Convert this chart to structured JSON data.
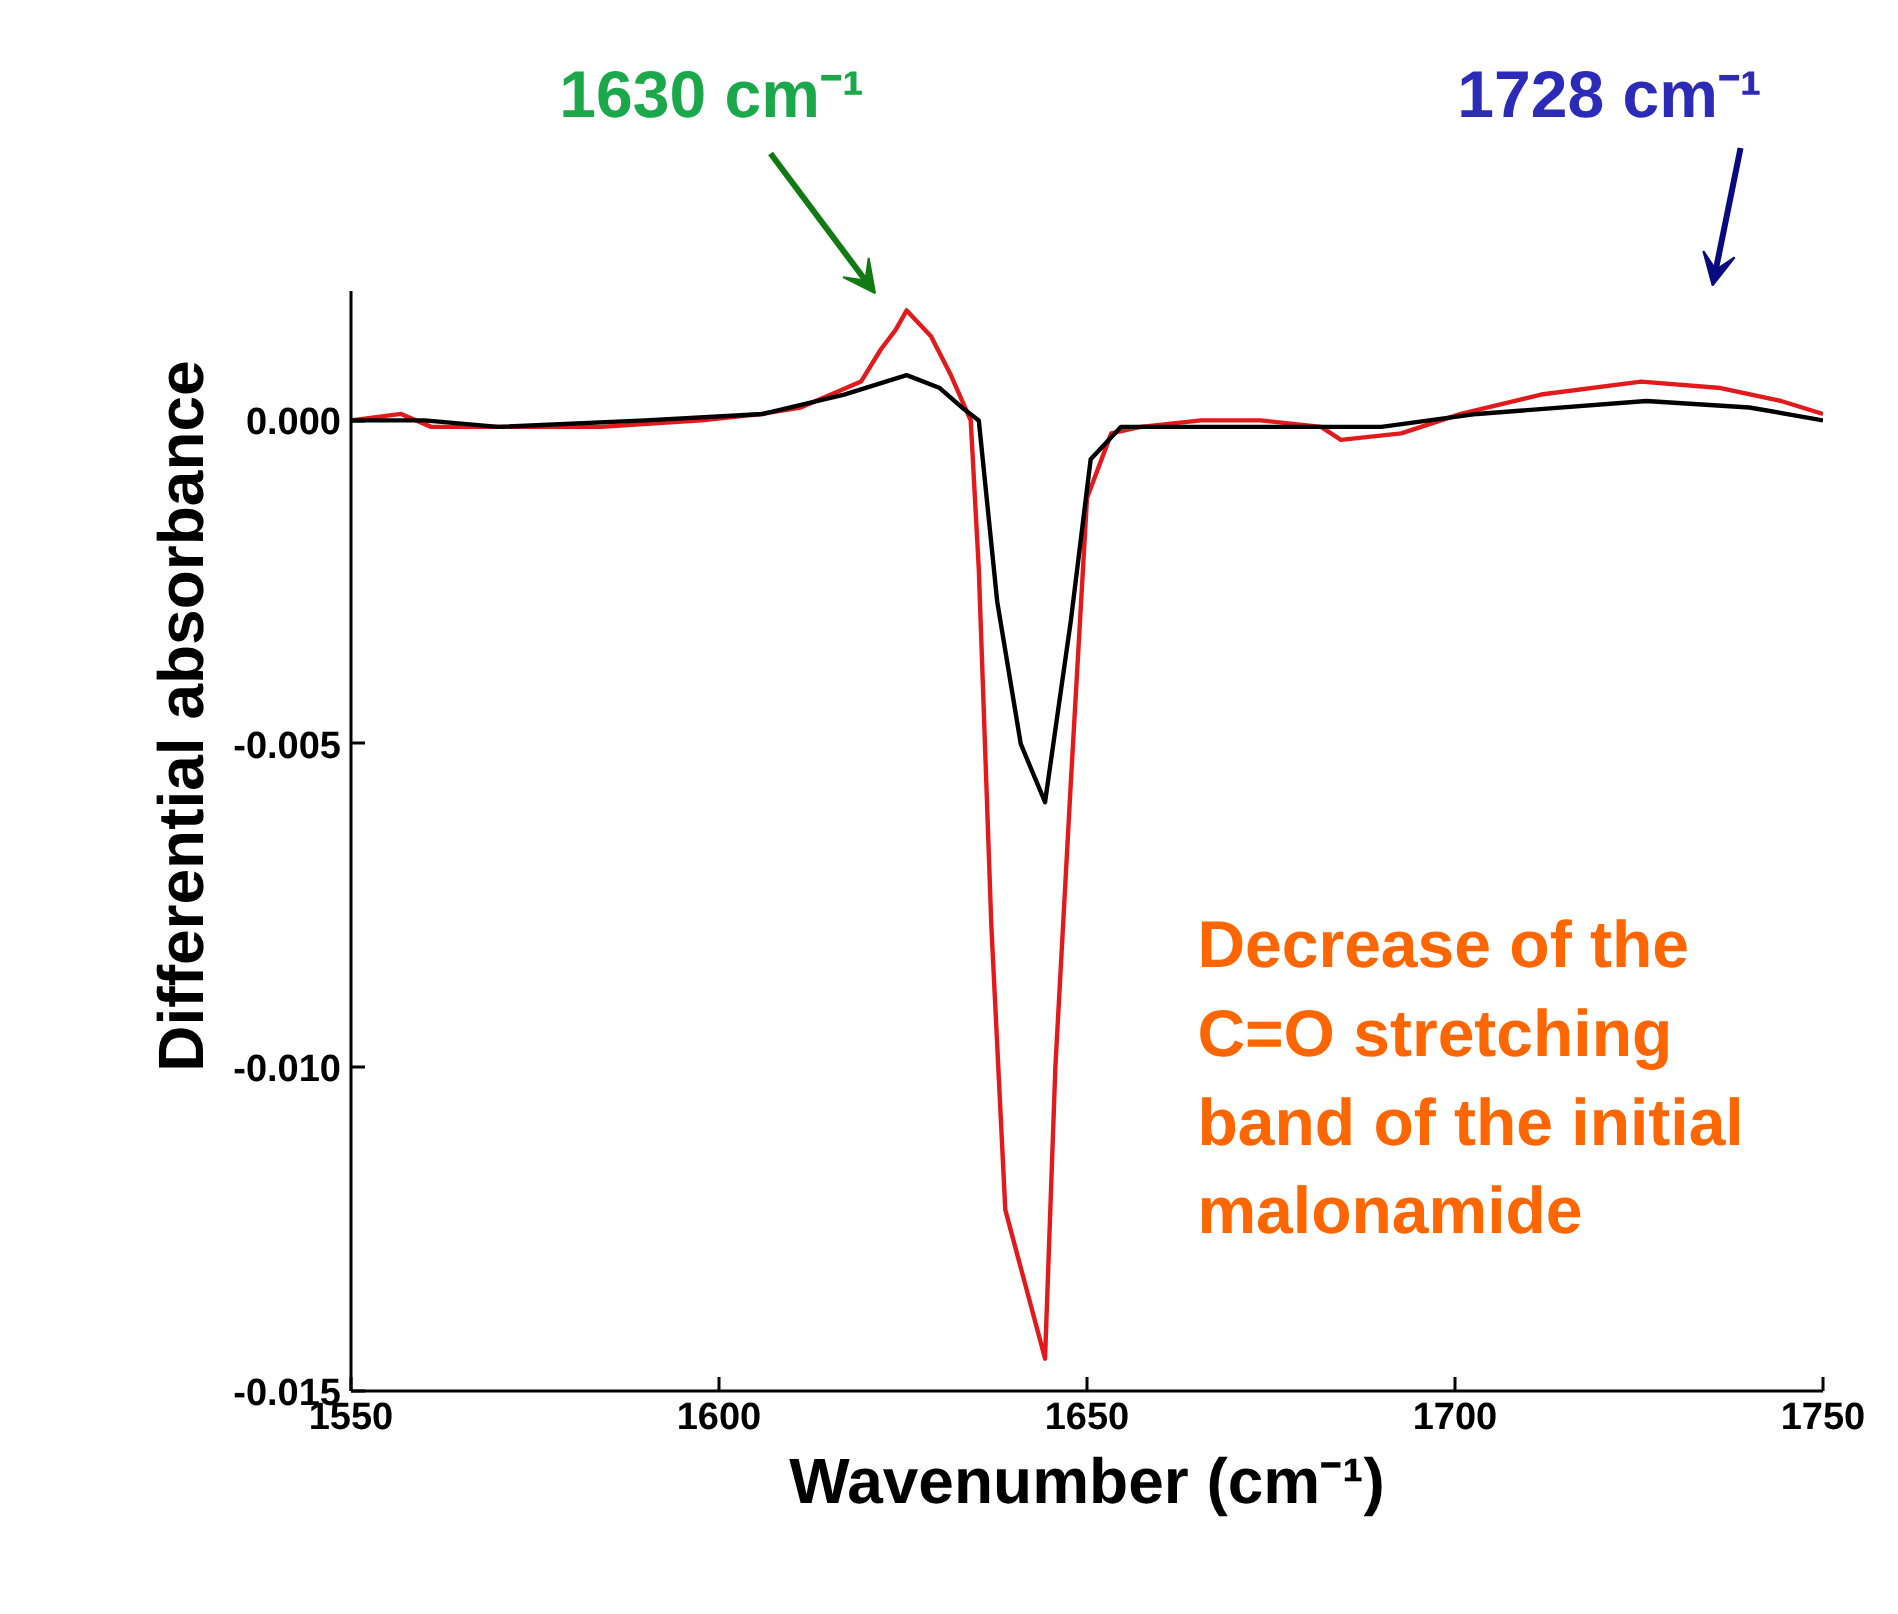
{
  "chart_data": {
    "type": "line",
    "xlabel": "Wavenumber (cm⁻¹)",
    "ylabel": "Differential absorbance",
    "xlim": [
      1550,
      1750
    ],
    "xticks": [
      1550,
      1600,
      1650,
      1700,
      1750
    ],
    "ylim": [
      -0.015,
      0.002
    ],
    "yticks": [
      {
        "value": 0,
        "label": "0.000"
      },
      {
        "value": -0.005,
        "label": "-0.005"
      },
      {
        "value": -0.01,
        "label": "-0.010"
      },
      {
        "value": -0.015,
        "label": "-0.015"
      }
    ],
    "grid": false,
    "marker": "none",
    "line_style": "solid",
    "series": [
      {
        "color": "#e31a1c",
        "x": [
          1550,
          1556.8,
          1560.9,
          1569,
          1584,
          1597.6,
          1605.7,
          1611.1,
          1619.3,
          1622,
          1624,
          1625.5,
          1628.8,
          1631.5,
          1634.2,
          1635.3,
          1637,
          1638.9,
          1644.3,
          1645.7,
          1647.8,
          1650,
          1653.3,
          1657.3,
          1665.5,
          1673.6,
          1681.8,
          1684.5,
          1692.7,
          1700.8,
          1711.7,
          1725.3,
          1736.1,
          1744.3,
          1750
        ],
        "values": [
          0,
          0.0001,
          -0.0001,
          -0.0001,
          -0.0001,
          0,
          0.0001,
          0.0002,
          0.0006,
          0.0011,
          0.0014,
          0.0017,
          0.0013,
          0.0007,
          0,
          -0.0023,
          -0.0078,
          -0.0122,
          -0.0145,
          -0.01,
          -0.0056,
          -0.0012,
          -0.0002,
          -0.0001,
          0,
          0,
          -0.0001,
          -0.0003,
          -0.0002,
          0.0001,
          0.0004,
          0.0006,
          0.0005,
          0.0003,
          0.0001
        ]
      },
      {
        "color": "#000000",
        "x": [
          1550,
          1560,
          1570,
          1590,
          1606,
          1617,
          1625.5,
          1630,
          1633,
          1635.3,
          1637.8,
          1641,
          1644.3,
          1647.8,
          1650.5,
          1654.6,
          1665,
          1690,
          1703,
          1726,
          1740,
          1750
        ],
        "values": [
          0,
          0,
          -0.0001,
          0,
          0.0001,
          0.0004,
          0.0007,
          0.0005,
          0.0002,
          0,
          -0.0028,
          -0.005,
          -0.0059,
          -0.0031,
          -0.0006,
          -0.0001,
          -0.0001,
          -0.0001,
          0.0001,
          0.0003,
          0.0002,
          0
        ]
      }
    ],
    "annotations": [
      "1630 cm⁻¹",
      "1728 cm⁻¹",
      "Decrease of the\nC=O stretching\nband of the initial\nmalonamide"
    ]
  }
}
